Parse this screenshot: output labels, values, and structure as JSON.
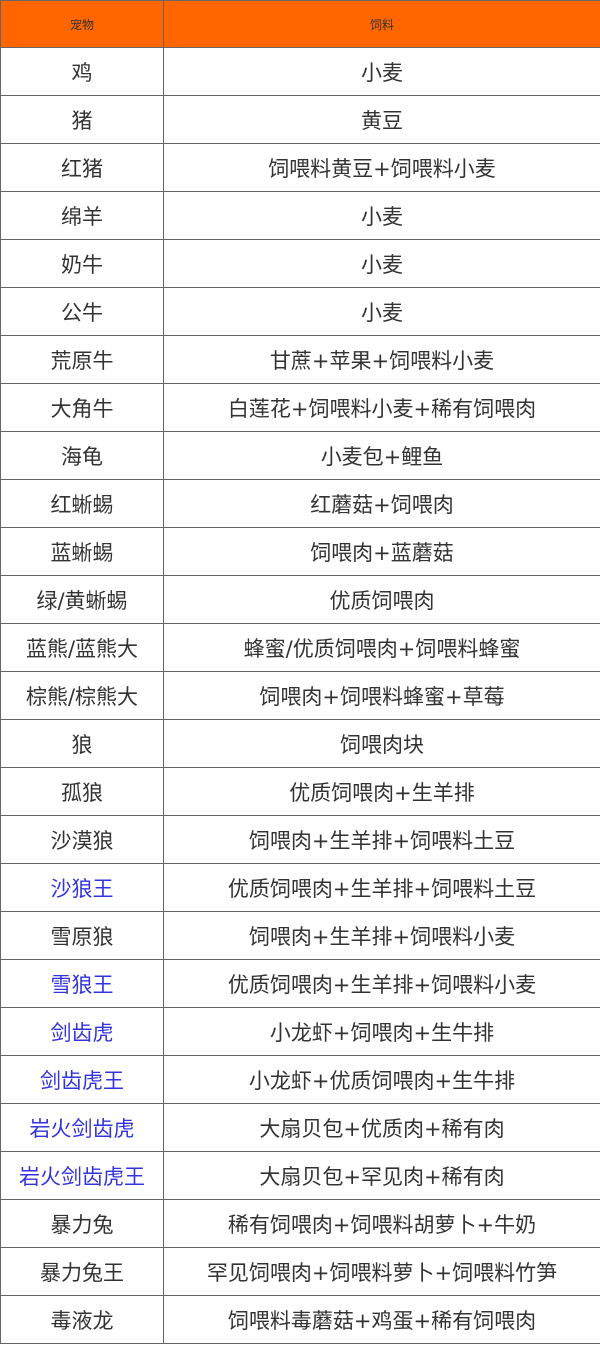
{
  "header": {
    "pet": "宠物",
    "feed": "饲料"
  },
  "colors": {
    "header_bg": "#ff6600",
    "link": "#3333dd"
  },
  "rows": [
    {
      "pet": "鸡",
      "feed": "小麦",
      "link": false
    },
    {
      "pet": "猪",
      "feed": "黄豆",
      "link": false
    },
    {
      "pet": "红猪",
      "feed": "饲喂料黄豆+饲喂料小麦",
      "link": false
    },
    {
      "pet": "绵羊",
      "feed": "小麦",
      "link": false
    },
    {
      "pet": "奶牛",
      "feed": "小麦",
      "link": false
    },
    {
      "pet": "公牛",
      "feed": "小麦",
      "link": false
    },
    {
      "pet": "荒原牛",
      "feed": "甘蔗+苹果+饲喂料小麦",
      "link": false
    },
    {
      "pet": "大角牛",
      "feed": "白莲花+饲喂料小麦+稀有饲喂肉",
      "link": false
    },
    {
      "pet": "海龟",
      "feed": "小麦包+鲤鱼",
      "link": false
    },
    {
      "pet": "红蜥蜴",
      "feed": "红蘑菇+饲喂肉",
      "link": false
    },
    {
      "pet": "蓝蜥蜴",
      "feed": "饲喂肉+蓝蘑菇",
      "link": false
    },
    {
      "pet": "绿/黄蜥蜴",
      "feed": "优质饲喂肉",
      "link": false
    },
    {
      "pet": "蓝熊/蓝熊大",
      "feed": "蜂蜜/优质饲喂肉+饲喂料蜂蜜",
      "link": false
    },
    {
      "pet": "棕熊/棕熊大",
      "feed": "饲喂肉+饲喂料蜂蜜+草莓",
      "link": false
    },
    {
      "pet": "狼",
      "feed": "饲喂肉块",
      "link": false
    },
    {
      "pet": "孤狼",
      "feed": "优质饲喂肉+生羊排",
      "link": false
    },
    {
      "pet": "沙漠狼",
      "feed": "饲喂肉+生羊排+饲喂料土豆",
      "link": false
    },
    {
      "pet": "沙狼王",
      "feed": "优质饲喂肉+生羊排+饲喂料土豆",
      "link": true
    },
    {
      "pet": "雪原狼",
      "feed": "饲喂肉+生羊排+饲喂料小麦",
      "link": false
    },
    {
      "pet": "雪狼王",
      "feed": "优质饲喂肉+生羊排+饲喂料小麦",
      "link": true
    },
    {
      "pet": "剑齿虎",
      "feed": "小龙虾+饲喂肉+生牛排",
      "link": true
    },
    {
      "pet": "剑齿虎王",
      "feed": "小龙虾+优质饲喂肉+生牛排",
      "link": true
    },
    {
      "pet": "岩火剑齿虎",
      "feed": "大扇贝包+优质肉+稀有肉",
      "link": true
    },
    {
      "pet": "岩火剑齿虎王",
      "feed": "大扇贝包+罕见肉+稀有肉",
      "link": true
    },
    {
      "pet": "暴力兔",
      "feed": "稀有饲喂肉+饲喂料胡萝卜+牛奶",
      "link": false
    },
    {
      "pet": "暴力兔王",
      "feed": "罕见饲喂肉+饲喂料萝卜+饲喂料竹笋",
      "link": false
    },
    {
      "pet": "毒液龙",
      "feed": "饲喂料毒蘑菇+鸡蛋+稀有饲喂肉",
      "link": false
    }
  ]
}
